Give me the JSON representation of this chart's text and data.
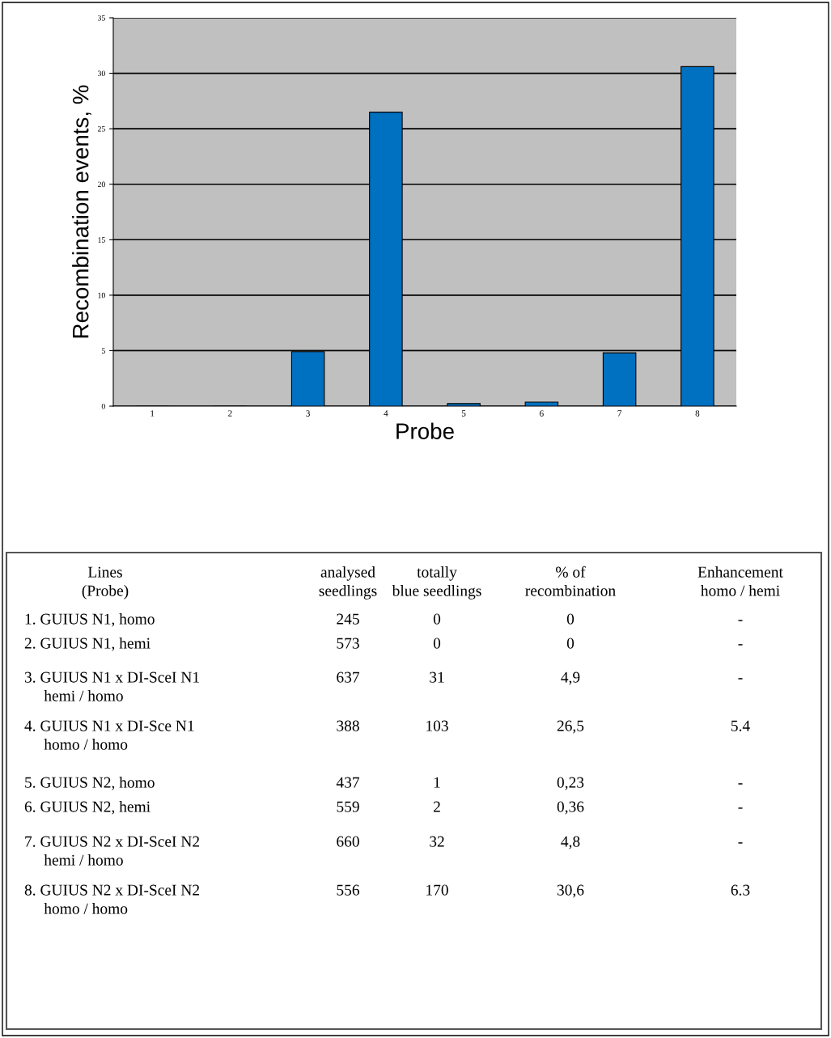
{
  "chart_data": {
    "type": "bar",
    "xlabel": "Probe",
    "ylabel": "Recombination events, %",
    "categories": [
      "1",
      "2",
      "3",
      "4",
      "5",
      "6",
      "7",
      "8"
    ],
    "values": [
      0,
      0,
      4.9,
      26.5,
      0.23,
      0.36,
      4.8,
      30.6
    ],
    "color": "#0070c0",
    "ylim": [
      0,
      35
    ],
    "yticks": [
      0,
      5,
      10,
      15,
      20,
      25,
      30,
      35
    ],
    "grid": "y",
    "annotations": [
      "Lines\n(Probe)",
      "analysed\nseedlings",
      "totally\nblue seedlings",
      "% of\nrecombination",
      "Enhancement\nhomo / hemi",
      "1. GUIUS N1, homo",
      "245",
      "0",
      "0",
      "-",
      "2. GUIUS N1, hemi",
      "573",
      "0",
      "0",
      "-",
      "3. GUIUS N1 x DI-SceI N1\n     hemi / homo",
      "637",
      "31",
      "4,9",
      "-",
      "4. GUIUS N1 x DI-Sce N1\n     homo / homo",
      "388",
      "103",
      "26,5",
      "5.4",
      "5. GUIUS N2, homo",
      "437",
      "1",
      "0,23",
      "-",
      "6. GUIUS N2, hemi",
      "559",
      "2",
      "0,36",
      "-",
      "7. GUIUS N2 x DI-SceI N2\n     hemi / homo",
      "660",
      "32",
      "4,8",
      "-",
      "8. GUIUS N2 x DI-SceI N2\n     homo / homo",
      "556",
      "170",
      "30,6",
      "6.3"
    ]
  }
}
